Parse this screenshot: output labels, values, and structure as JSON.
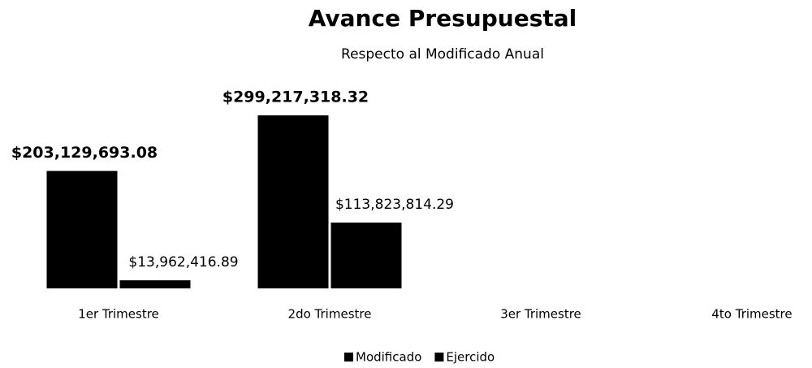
{
  "chart_data": {
    "type": "bar",
    "title": "Avance Presupuestal",
    "subtitle": "Respecto al Modificado Anual",
    "categories": [
      "1er Trimestre",
      "2do Trimestre",
      "3er Trimestre",
      "4to Trimestre"
    ],
    "series": [
      {
        "name": "Modificado",
        "color": "#000000",
        "values": [
          203129693.08,
          299217318.32,
          null,
          null
        ],
        "value_labels": [
          "$203,129,693.08",
          "$299,217,318.32",
          null,
          null
        ]
      },
      {
        "name": "Ejercido",
        "color": "#000000",
        "values": [
          13962416.89,
          113823814.29,
          null,
          null
        ],
        "value_labels": [
          "$13,962,416.89",
          "$113,823,814.29",
          null,
          null
        ]
      }
    ],
    "legend": "bottom"
  }
}
